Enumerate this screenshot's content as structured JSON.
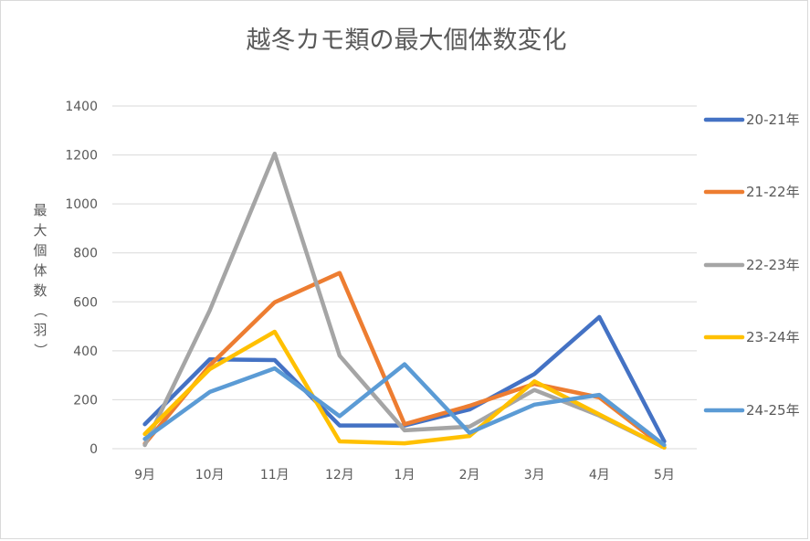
{
  "chart_data": {
    "type": "line",
    "title": "越冬カモ類の最大個体数変化",
    "xlabel": "",
    "ylabel": "最大個体数（羽）",
    "categories": [
      "9月",
      "10月",
      "11月",
      "12月",
      "1月",
      "2月",
      "3月",
      "4月",
      "5月"
    ],
    "ylim": [
      0,
      1400
    ],
    "yticks": [
      0,
      200,
      400,
      600,
      800,
      1000,
      1200,
      1400
    ],
    "grid": true,
    "legend_position": "right",
    "series": [
      {
        "name": "20-21年",
        "color": "#4472C4",
        "values": [
          100,
          365,
          362,
          95,
          95,
          160,
          305,
          538,
          30
        ]
      },
      {
        "name": "21-22年",
        "color": "#ED7D31",
        "values": [
          20,
          340,
          598,
          718,
          100,
          175,
          265,
          210,
          5
        ]
      },
      {
        "name": "22-23年",
        "color": "#A5A5A5",
        "values": [
          15,
          565,
          1205,
          380,
          75,
          90,
          240,
          135,
          5
        ]
      },
      {
        "name": "23-24年",
        "color": "#FFC000",
        "values": [
          60,
          325,
          478,
          30,
          22,
          52,
          275,
          140,
          5
        ]
      },
      {
        "name": "24-25年",
        "color": "#5B9BD5",
        "values": [
          40,
          232,
          328,
          133,
          345,
          65,
          180,
          220,
          15
        ]
      }
    ]
  }
}
